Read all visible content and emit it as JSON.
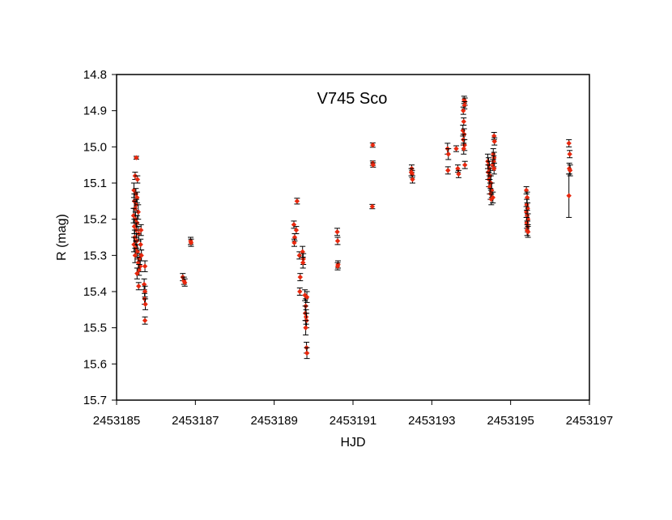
{
  "chart_data": {
    "type": "scatter",
    "title": "V745 Sco",
    "xlabel": "HJD",
    "ylabel": "R (mag)",
    "xlim": [
      2453185,
      2453197
    ],
    "ylim": [
      14.8,
      15.7
    ],
    "y_inverted": true,
    "grid": false,
    "x_ticks": [
      2453185,
      2453187,
      2453189,
      2453191,
      2453193,
      2453195,
      2453197
    ],
    "x_tick_labels": [
      "2453185",
      "2453187",
      "2453189",
      "2453191",
      "2453193",
      "2453195",
      "2453197"
    ],
    "y_ticks": [
      14.8,
      14.9,
      15.0,
      15.1,
      15.2,
      15.3,
      15.4,
      15.5,
      15.6,
      15.7
    ],
    "y_tick_labels": [
      "14.8",
      "14.9",
      "15.0",
      "15.1",
      "15.2",
      "15.3",
      "15.4",
      "15.5",
      "15.6",
      "15.7"
    ],
    "marker_color": "#e8280e",
    "errorbar_color": "#000000",
    "series": [
      {
        "points": [
          [
            2453185.5,
            15.03,
            0.004
          ],
          [
            2453185.47,
            15.08,
            0.01
          ],
          [
            2453185.53,
            15.09,
            0.01
          ],
          [
            2453185.44,
            15.12,
            0.02
          ],
          [
            2453185.49,
            15.13,
            0.015
          ],
          [
            2453185.52,
            15.14,
            0.015
          ],
          [
            2453185.45,
            15.15,
            0.02
          ],
          [
            2453185.5,
            15.16,
            0.015
          ],
          [
            2453185.47,
            15.17,
            0.02
          ],
          [
            2453185.55,
            15.18,
            0.02
          ],
          [
            2453185.43,
            15.19,
            0.02
          ],
          [
            2453185.48,
            15.2,
            0.02
          ],
          [
            2453185.52,
            15.21,
            0.02
          ],
          [
            2453185.45,
            15.22,
            0.02
          ],
          [
            2453185.5,
            15.23,
            0.02
          ],
          [
            2453185.56,
            15.24,
            0.02
          ],
          [
            2453185.46,
            15.25,
            0.02
          ],
          [
            2453185.51,
            15.26,
            0.02
          ],
          [
            2453185.44,
            15.27,
            0.02
          ],
          [
            2453185.49,
            15.28,
            0.02
          ],
          [
            2453185.53,
            15.29,
            0.02
          ],
          [
            2453185.47,
            15.3,
            0.02
          ],
          [
            2453185.58,
            15.31,
            0.015
          ],
          [
            2453185.55,
            15.32,
            0.015
          ],
          [
            2453185.6,
            15.33,
            0.015
          ],
          [
            2453185.57,
            15.34,
            0.015
          ],
          [
            2453185.52,
            15.35,
            0.015
          ],
          [
            2453185.62,
            15.23,
            0.015
          ],
          [
            2453185.61,
            15.27,
            0.015
          ],
          [
            2453185.63,
            15.3,
            0.015
          ],
          [
            2453185.56,
            15.385,
            0.01
          ],
          [
            2453185.72,
            15.33,
            0.015
          ],
          [
            2453185.7,
            15.38,
            0.015
          ],
          [
            2453185.72,
            15.4,
            0.015
          ],
          [
            2453185.71,
            15.42,
            0.015
          ],
          [
            2453185.73,
            15.435,
            0.015
          ],
          [
            2453185.72,
            15.48,
            0.01
          ],
          [
            2453186.68,
            15.36,
            0.01
          ],
          [
            2453186.71,
            15.37,
            0.01
          ],
          [
            2453186.73,
            15.375,
            0.01
          ],
          [
            2453186.88,
            15.26,
            0.01
          ],
          [
            2453186.89,
            15.265,
            0.01
          ],
          [
            2453189.5,
            15.215,
            0.01
          ],
          [
            2453189.52,
            15.25,
            0.01
          ],
          [
            2453189.51,
            15.265,
            0.01
          ],
          [
            2453189.56,
            15.23,
            0.01
          ],
          [
            2453189.58,
            15.15,
            0.008
          ],
          [
            2453189.64,
            15.3,
            0.01
          ],
          [
            2453189.66,
            15.36,
            0.01
          ],
          [
            2453189.65,
            15.4,
            0.01
          ],
          [
            2453189.72,
            15.29,
            0.015
          ],
          [
            2453189.74,
            15.31,
            0.015
          ],
          [
            2453189.73,
            15.32,
            0.015
          ],
          [
            2453189.78,
            15.41,
            0.015
          ],
          [
            2453189.8,
            15.44,
            0.02
          ],
          [
            2453189.79,
            15.46,
            0.02
          ],
          [
            2453189.81,
            15.47,
            0.02
          ],
          [
            2453189.82,
            15.48,
            0.02
          ],
          [
            2453189.8,
            15.5,
            0.02
          ],
          [
            2453189.83,
            15.415,
            0.015
          ],
          [
            2453189.82,
            15.555,
            0.015
          ],
          [
            2453189.83,
            15.57,
            0.015
          ],
          [
            2453190.6,
            15.235,
            0.01
          ],
          [
            2453190.61,
            15.26,
            0.01
          ],
          [
            2453190.62,
            15.325,
            0.01
          ],
          [
            2453190.61,
            15.33,
            0.01
          ],
          [
            2453191.5,
            14.995,
            0.006
          ],
          [
            2453191.5,
            15.045,
            0.006
          ],
          [
            2453191.51,
            15.05,
            0.006
          ],
          [
            2453191.49,
            15.165,
            0.006
          ],
          [
            2453192.49,
            15.06,
            0.01
          ],
          [
            2453192.5,
            15.075,
            0.01
          ],
          [
            2453192.51,
            15.09,
            0.01
          ],
          [
            2453192.48,
            15.07,
            0.01
          ],
          [
            2453193.4,
            15.005,
            0.015
          ],
          [
            2453193.42,
            15.02,
            0.015
          ],
          [
            2453193.41,
            15.065,
            0.01
          ],
          [
            2453193.62,
            15.005,
            0.008
          ],
          [
            2453193.66,
            15.06,
            0.01
          ],
          [
            2453193.68,
            15.075,
            0.01
          ],
          [
            2453193.82,
            14.87,
            0.01
          ],
          [
            2453193.84,
            14.875,
            0.01
          ],
          [
            2453193.83,
            14.885,
            0.01
          ],
          [
            2453193.8,
            14.9,
            0.01
          ],
          [
            2453193.81,
            14.93,
            0.01
          ],
          [
            2453193.79,
            14.955,
            0.015
          ],
          [
            2453193.82,
            14.965,
            0.015
          ],
          [
            2453193.8,
            14.98,
            0.015
          ],
          [
            2453193.83,
            14.995,
            0.015
          ],
          [
            2453193.81,
            15.005,
            0.015
          ],
          [
            2453193.84,
            15.05,
            0.01
          ],
          [
            2453194.42,
            15.04,
            0.02
          ],
          [
            2453194.44,
            15.05,
            0.02
          ],
          [
            2453194.46,
            15.06,
            0.02
          ],
          [
            2453194.43,
            15.07,
            0.02
          ],
          [
            2453194.48,
            15.08,
            0.02
          ],
          [
            2453194.45,
            15.09,
            0.02
          ],
          [
            2453194.5,
            15.1,
            0.02
          ],
          [
            2453194.47,
            15.11,
            0.02
          ],
          [
            2453194.52,
            15.12,
            0.02
          ],
          [
            2453194.49,
            15.13,
            0.015
          ],
          [
            2453194.51,
            15.145,
            0.015
          ],
          [
            2453194.55,
            15.14,
            0.015
          ],
          [
            2453194.56,
            15.02,
            0.015
          ],
          [
            2453194.58,
            15.03,
            0.015
          ],
          [
            2453194.57,
            15.04,
            0.015
          ],
          [
            2453194.55,
            15.05,
            0.015
          ],
          [
            2453194.58,
            14.97,
            0.01
          ],
          [
            2453194.59,
            14.985,
            0.01
          ],
          [
            2453194.58,
            15.06,
            0.015
          ],
          [
            2453195.4,
            15.12,
            0.01
          ],
          [
            2453195.42,
            15.14,
            0.015
          ],
          [
            2453195.41,
            15.16,
            0.015
          ],
          [
            2453195.43,
            15.17,
            0.015
          ],
          [
            2453195.4,
            15.18,
            0.015
          ],
          [
            2453195.42,
            15.19,
            0.015
          ],
          [
            2453195.44,
            15.2,
            0.015
          ],
          [
            2453195.41,
            15.21,
            0.015
          ],
          [
            2453195.43,
            15.22,
            0.015
          ],
          [
            2453195.42,
            15.23,
            0.015
          ],
          [
            2453195.44,
            15.235,
            0.015
          ],
          [
            2453196.48,
            14.99,
            0.01
          ],
          [
            2453196.5,
            15.02,
            0.01
          ],
          [
            2453196.49,
            15.06,
            0.015
          ],
          [
            2453196.51,
            15.065,
            0.015
          ],
          [
            2453196.48,
            15.135,
            0.06
          ]
        ]
      }
    ]
  }
}
